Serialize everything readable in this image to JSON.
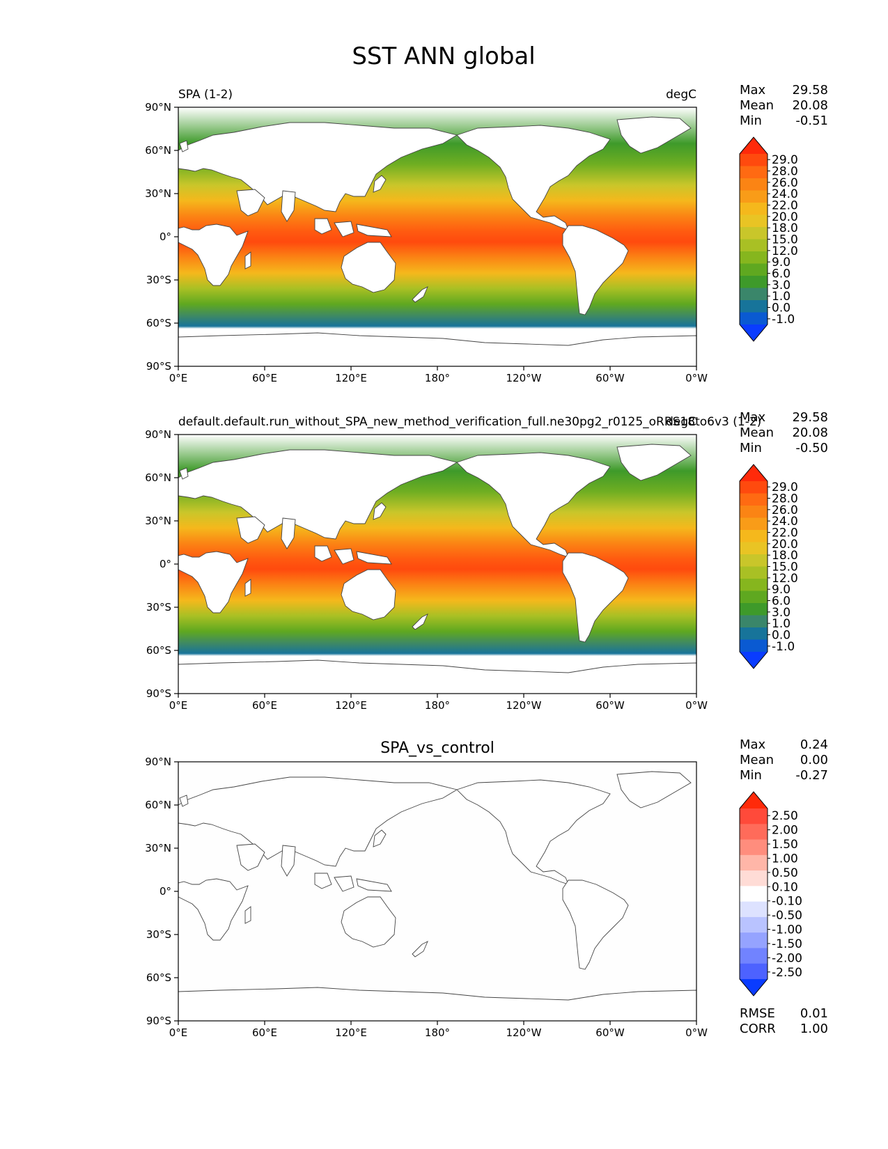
{
  "figure": {
    "title": "SST ANN global"
  },
  "panels": [
    {
      "id": "test",
      "left_title": "SPA (1-2)",
      "center_title": "",
      "right_title": "degC",
      "stats": [
        {
          "label": "Max",
          "value": "29.58"
        },
        {
          "label": "Mean",
          "value": "20.08"
        },
        {
          "label": "Min",
          "value": "-0.51"
        }
      ],
      "colorbar": {
        "levels": [
          "29.0",
          "28.0",
          "26.0",
          "24.0",
          "22.0",
          "20.0",
          "18.0",
          "15.0",
          "12.0",
          "9.0",
          "6.0",
          "3.0",
          "1.0",
          "0.0",
          "-1.0"
        ],
        "colors": [
          "#ff2a0a",
          "#ff4a0e",
          "#ff6a12",
          "#fb8414",
          "#f99c18",
          "#f5b81c",
          "#e9c424",
          "#c9c62a",
          "#a9c024",
          "#86b61e",
          "#5fa820",
          "#3e9a2a",
          "#3a866a",
          "#17749a",
          "#0a5ad2",
          "#0a3cff"
        ]
      },
      "bottom_stats": []
    },
    {
      "id": "reference",
      "left_title": "default.default.run_without_SPA_new_method_verification_full.ne30pg2_r0125_oRRS18to6v3 (1-2)",
      "center_title": "",
      "right_title": "degC",
      "stats": [
        {
          "label": "Max",
          "value": "29.58"
        },
        {
          "label": "Mean",
          "value": "20.08"
        },
        {
          "label": "Min",
          "value": "-0.50"
        }
      ],
      "colorbar": {
        "levels": [
          "29.0",
          "28.0",
          "26.0",
          "24.0",
          "22.0",
          "20.0",
          "18.0",
          "15.0",
          "12.0",
          "9.0",
          "6.0",
          "3.0",
          "1.0",
          "0.0",
          "-1.0"
        ],
        "colors": [
          "#ff2a0a",
          "#ff4a0e",
          "#ff6a12",
          "#fb8414",
          "#f99c18",
          "#f5b81c",
          "#e9c424",
          "#c9c62a",
          "#a9c024",
          "#86b61e",
          "#5fa820",
          "#3e9a2a",
          "#3a866a",
          "#17749a",
          "#0a5ad2",
          "#0a3cff"
        ]
      },
      "bottom_stats": []
    },
    {
      "id": "difference",
      "left_title": "",
      "center_title": "SPA_vs_control",
      "right_title": "",
      "stats": [
        {
          "label": "Max",
          "value": "0.24"
        },
        {
          "label": "Mean",
          "value": "0.00"
        },
        {
          "label": "Min",
          "value": "-0.27"
        }
      ],
      "colorbar": {
        "levels": [
          "2.50",
          "2.00",
          "1.50",
          "1.00",
          "0.50",
          "0.10",
          "-0.10",
          "-0.50",
          "-1.00",
          "-1.50",
          "-2.00",
          "-2.50"
        ],
        "colors": [
          "#ff2a0a",
          "#ff4a3a",
          "#ff6b5a",
          "#ff8d7d",
          "#ffb6a8",
          "#ffdcd6",
          "#ffffff",
          "#dde2ff",
          "#b9c3ff",
          "#95a3ff",
          "#7183ff",
          "#4d62ff",
          "#0a3cff"
        ]
      },
      "bottom_stats": [
        {
          "label": "RMSE",
          "value": "0.01"
        },
        {
          "label": "CORR",
          "value": "1.00"
        }
      ]
    }
  ],
  "axes": {
    "lat_ticks": [
      "90°N",
      "60°N",
      "30°N",
      "0°",
      "30°S",
      "60°S",
      "90°S"
    ],
    "lon_ticks": [
      "0°E",
      "60°E",
      "120°E",
      "180°",
      "120°W",
      "60°W",
      "0°W"
    ]
  },
  "map_data": {
    "projection": "PlateCarree",
    "central_longitude": 180,
    "extent": {
      "lon": [
        0,
        360
      ],
      "lat": [
        -90,
        90
      ]
    },
    "sst_field_description_by_latitude_degC": [
      {
        "lat": 0,
        "value": 28.5
      },
      {
        "lat": 20,
        "value": 25
      },
      {
        "lat": -20,
        "value": 23
      },
      {
        "lat": 40,
        "value": 17
      },
      {
        "lat": -40,
        "value": 13
      },
      {
        "lat": 55,
        "value": 8
      },
      {
        "lat": -55,
        "value": 3
      },
      {
        "lat": -62,
        "value": -0.5
      }
    ],
    "difference_field": "near zero everywhere"
  }
}
